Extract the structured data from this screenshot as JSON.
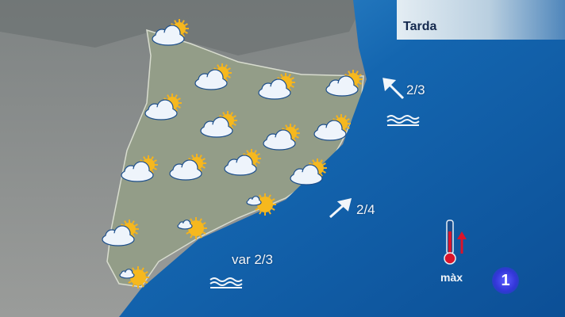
{
  "header": {
    "title": "Tarda"
  },
  "colors": {
    "sea": "#1160a8",
    "land": "#8f9a8a",
    "sun": "#f4b21c",
    "cloud": "#eef4fb",
    "thermometer": "#d9142b"
  },
  "forecast_icons": [
    {
      "icon": "partly-cloudy-icon"
    },
    {
      "icon": "partly-cloudy-icon"
    },
    {
      "icon": "partly-cloudy-icon"
    },
    {
      "icon": "partly-cloudy-icon"
    },
    {
      "icon": "partly-cloudy-icon"
    },
    {
      "icon": "partly-cloudy-icon"
    },
    {
      "icon": "partly-cloudy-icon"
    },
    {
      "icon": "partly-cloudy-icon"
    },
    {
      "icon": "partly-cloudy-icon"
    },
    {
      "icon": "partly-cloudy-icon"
    },
    {
      "icon": "partly-cloudy-icon"
    },
    {
      "icon": "partly-cloudy-icon"
    },
    {
      "icon": "partly-cloudy-icon"
    },
    {
      "icon": "mostly-sunny-icon"
    },
    {
      "icon": "mostly-sunny-icon"
    },
    {
      "icon": "mostly-sunny-icon"
    }
  ],
  "sea": {
    "north": {
      "wind": "2/3",
      "direction": "NW",
      "state_icon": "waves-icon"
    },
    "center": {
      "wind": "2/4",
      "direction": "SW"
    },
    "south": {
      "wind": "var 2/3",
      "state_icon": "waves-icon"
    }
  },
  "legend": {
    "label": "màx",
    "icon": "thermometer-up-icon"
  },
  "channel_logo": "1"
}
